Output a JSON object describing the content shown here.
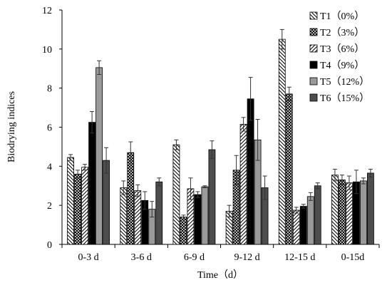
{
  "chart_data": {
    "type": "bar",
    "title": "",
    "xlabel": "Time（d）",
    "ylabel": "Biodrying indices",
    "ylim": [
      0,
      12
    ],
    "yticks": [
      "0",
      "2",
      "4",
      "6",
      "8",
      "10",
      "12"
    ],
    "grid": false,
    "legend_position": "top-right",
    "categories": [
      "0-3 d",
      "3-6 d",
      "6-9 d",
      "9-12 d",
      "12-15 d",
      "0-15d"
    ],
    "series": [
      {
        "name": "T1（0%）",
        "pattern": "hatch-back",
        "values": [
          4.45,
          2.9,
          5.1,
          1.7,
          10.5,
          3.55
        ],
        "errors": [
          0.15,
          0.35,
          0.25,
          0.3,
          0.5,
          0.3
        ]
      },
      {
        "name": "T2（3%）",
        "pattern": "crosshatch",
        "values": [
          3.6,
          4.7,
          1.4,
          3.8,
          7.7,
          3.3
        ],
        "errors": [
          0.2,
          0.55,
          0.1,
          0.75,
          0.35,
          0.25
        ]
      },
      {
        "name": "T3（6%）",
        "pattern": "hatch-fwd",
        "values": [
          3.95,
          2.75,
          2.85,
          6.15,
          1.75,
          3.15
        ],
        "errors": [
          0.15,
          0.3,
          0.55,
          0.35,
          0.15,
          0.35
        ]
      },
      {
        "name": "T4（9%）",
        "pattern": "solid-black",
        "values": [
          6.25,
          2.25,
          2.55,
          7.45,
          1.95,
          3.2
        ],
        "errors": [
          0.55,
          0.45,
          0.15,
          1.1,
          0.1,
          0.6
        ]
      },
      {
        "name": "T5（12%）",
        "pattern": "solid-lightgray",
        "values": [
          9.05,
          1.8,
          2.95,
          5.35,
          2.45,
          3.25
        ],
        "errors": [
          0.35,
          0.4,
          0.05,
          1.05,
          0.2,
          0.15
        ]
      },
      {
        "name": "T6（15%）",
        "pattern": "solid-darkgray",
        "values": [
          4.3,
          3.2,
          4.85,
          2.9,
          3.0,
          3.65
        ],
        "errors": [
          0.65,
          0.2,
          0.45,
          0.6,
          0.15,
          0.2
        ]
      }
    ]
  }
}
